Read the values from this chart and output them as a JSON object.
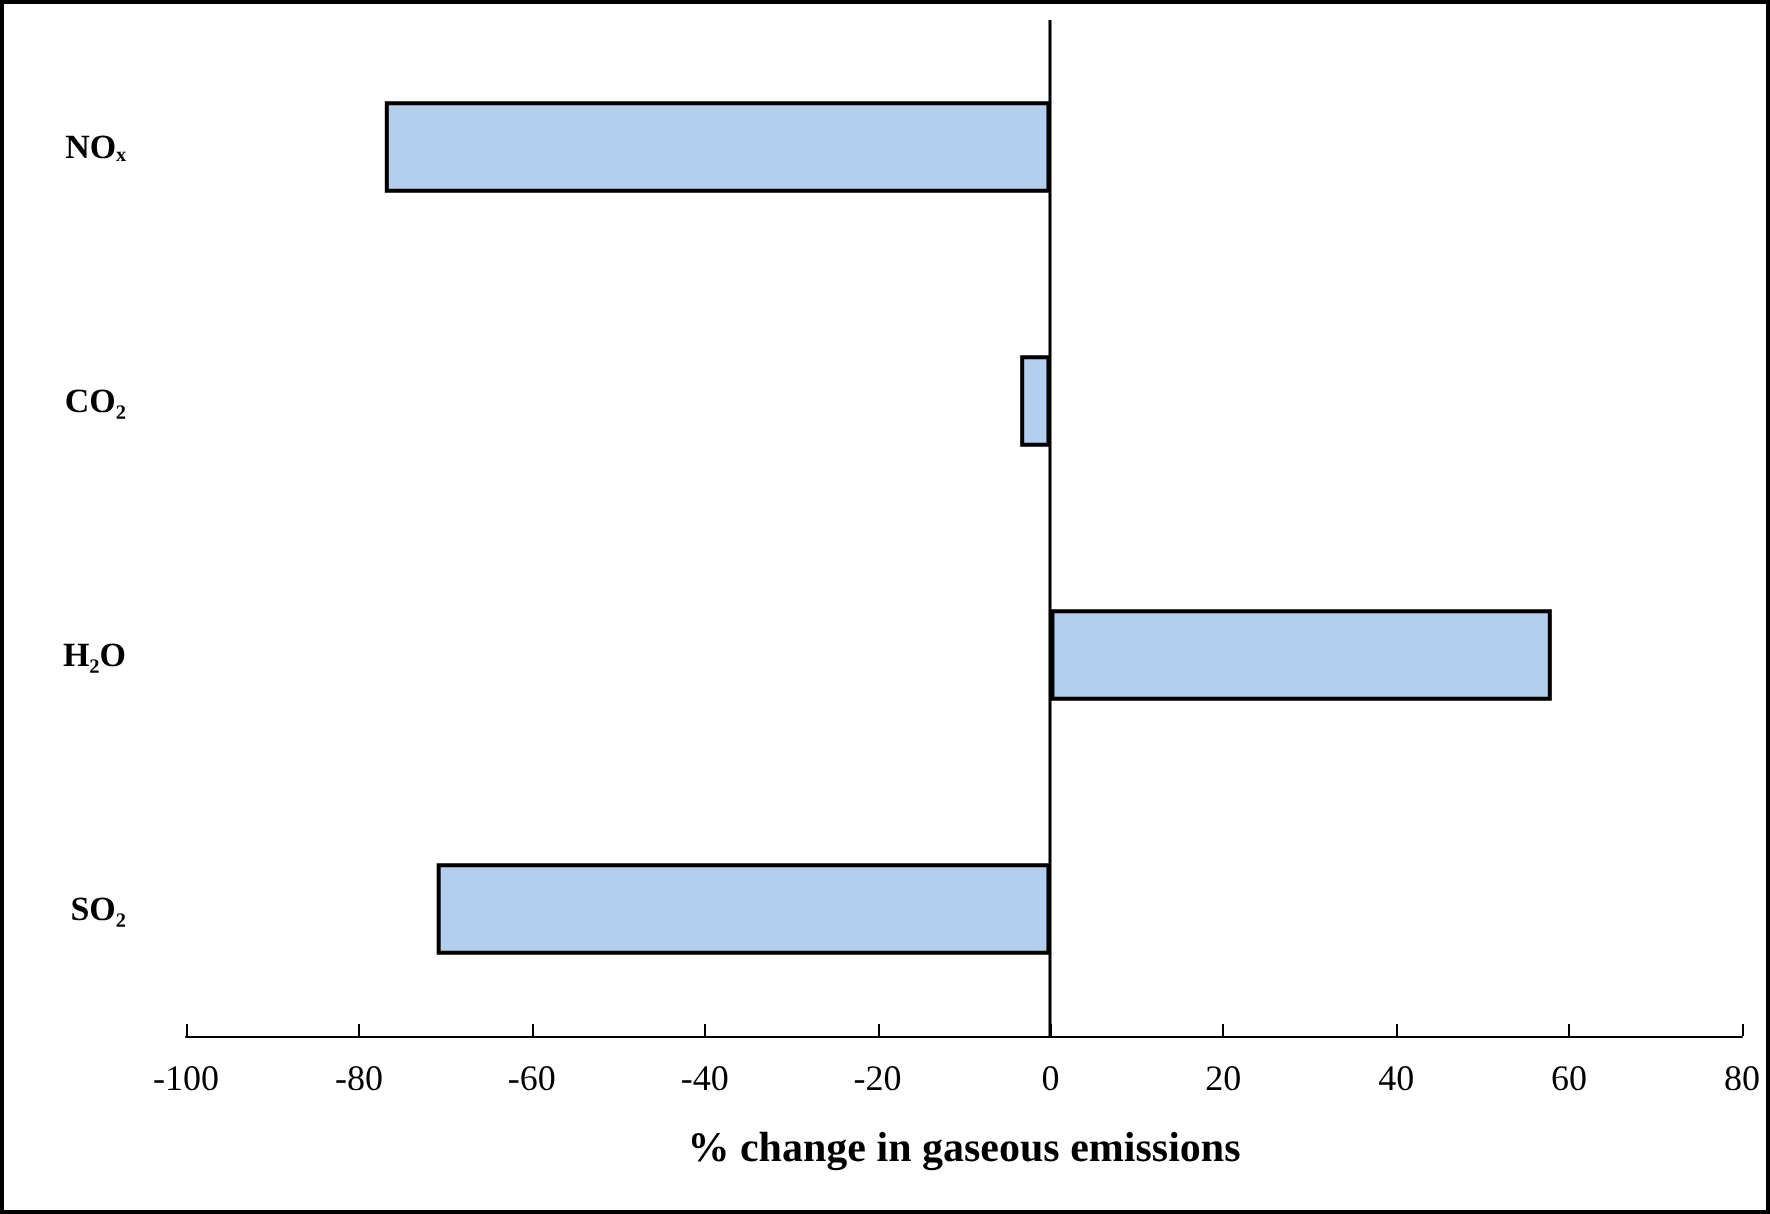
{
  "chart_data": {
    "type": "bar",
    "orientation": "horizontal",
    "xlabel": "% change in gaseous emissions",
    "categories": [
      "NOₓ",
      "CO₂",
      "H₂O",
      "SO₂"
    ],
    "values": [
      -77,
      -3.5,
      58,
      -71
    ],
    "color": "#b4cfed",
    "xlim": [
      -100,
      80
    ],
    "xticks": [
      -100,
      -80,
      -60,
      -40,
      -20,
      0,
      20,
      40,
      60,
      80
    ],
    "ref_lines": [
      {
        "axis": "x",
        "value": 0,
        "color": "#000000",
        "line_style": "solid"
      }
    ],
    "grid": false
  }
}
